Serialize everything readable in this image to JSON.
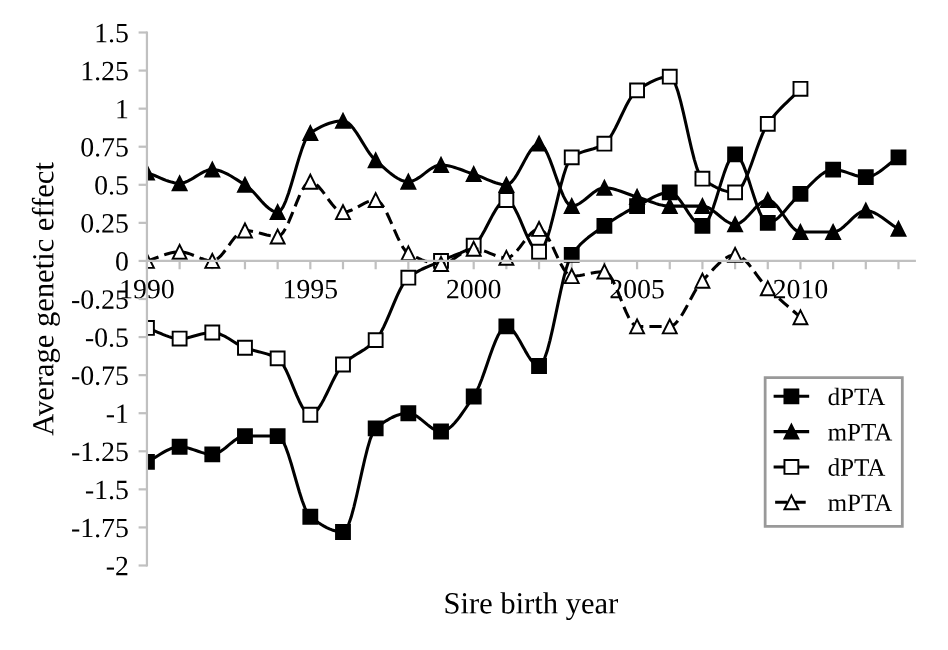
{
  "chart_data": {
    "type": "line",
    "xlabel": "Sire birth year",
    "ylabel": "Average genetic effect",
    "x": [
      1990,
      1991,
      1992,
      1993,
      1994,
      1995,
      1996,
      1997,
      1998,
      1999,
      2000,
      2001,
      2002,
      2003,
      2004,
      2005,
      2006,
      2007,
      2008,
      2009,
      2010,
      2011,
      2012,
      2013
    ],
    "series": [
      {
        "name": "dPTA",
        "color": "#000000",
        "marker": "square",
        "line_style": "solid",
        "values": [
          -1.32,
          -1.22,
          -1.27,
          -1.15,
          -1.15,
          -1.68,
          -1.78,
          -1.1,
          -1.0,
          -1.12,
          -0.89,
          -0.43,
          -0.69,
          0.04,
          0.23,
          0.36,
          0.45,
          0.23,
          0.7,
          0.25,
          0.44,
          0.6,
          0.55,
          0.68
        ]
      },
      {
        "name": "mPTA",
        "color": "#000000",
        "marker": "triangle",
        "line_style": "solid",
        "values": [
          0.58,
          0.51,
          0.6,
          0.5,
          0.32,
          0.84,
          0.92,
          0.66,
          0.52,
          0.63,
          0.57,
          0.5,
          0.77,
          0.36,
          0.48,
          0.42,
          0.36,
          0.36,
          0.24,
          0.4,
          0.19,
          0.19,
          0.33,
          0.21
        ]
      },
      {
        "name": "dPTA",
        "color": "#000000",
        "marker": "square",
        "line_style": "solid",
        "values": [
          -0.44,
          -0.51,
          -0.47,
          -0.57,
          -0.64,
          -1.01,
          -0.68,
          -0.52,
          -0.11,
          0.0,
          0.1,
          0.4,
          0.06,
          0.68,
          0.77,
          1.12,
          1.21,
          0.54,
          0.45,
          0.9,
          1.13,
          null,
          null,
          null
        ]
      },
      {
        "name": "mPTA",
        "color": "#000000",
        "marker": "triangle",
        "line_style": "dashed",
        "values": [
          0.0,
          0.06,
          0.0,
          0.2,
          0.16,
          0.52,
          0.32,
          0.4,
          0.05,
          -0.02,
          0.08,
          0.02,
          0.21,
          -0.1,
          -0.07,
          -0.43,
          -0.43,
          -0.13,
          0.04,
          -0.18,
          -0.37,
          null,
          null,
          null
        ]
      }
    ],
    "xlim": [
      1990,
      2013.5
    ],
    "xticks": [
      1990,
      {
        "value": 1991,
        "label": null
      },
      {
        "value": 1992,
        "label": null
      },
      {
        "value": 1993,
        "label": null
      },
      {
        "value": 1994,
        "label": null
      },
      1995,
      {
        "value": 1996,
        "label": null
      },
      {
        "value": 1997,
        "label": null
      },
      {
        "value": 1998,
        "label": null
      },
      {
        "value": 1999,
        "label": null
      },
      2000,
      {
        "value": 2001,
        "label": null
      },
      {
        "value": 2002,
        "label": null
      },
      {
        "value": 2003,
        "label": null
      },
      {
        "value": 2004,
        "label": null
      },
      2005,
      {
        "value": 2006,
        "label": null
      },
      {
        "value": 2007,
        "label": null
      },
      {
        "value": 2008,
        "label": null
      },
      {
        "value": 2009,
        "label": null
      },
      2010,
      {
        "value": 2011,
        "label": null
      },
      {
        "value": 2012,
        "label": null
      },
      {
        "value": 2013,
        "label": null
      }
    ],
    "ylim": [
      -2,
      1.5
    ],
    "yticks": [
      -2,
      -1.75,
      -1.5,
      -1.25,
      -1,
      -0.75,
      -0.5,
      -0.25,
      0,
      0.25,
      0.5,
      0.75,
      1,
      1.25,
      1.5
    ],
    "grid": false,
    "legend": "bottom right"
  }
}
